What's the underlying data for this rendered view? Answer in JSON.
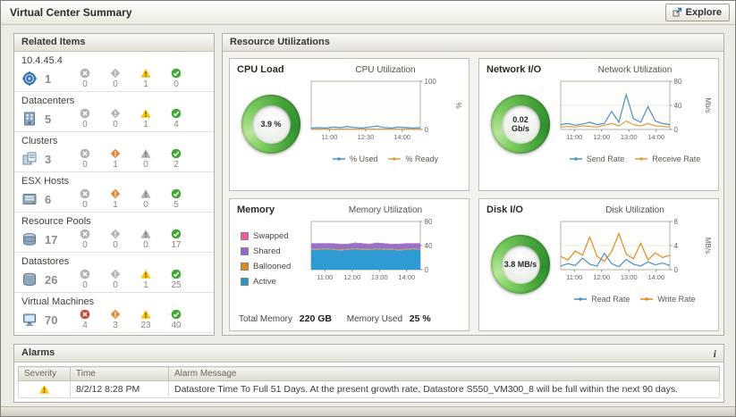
{
  "header": {
    "title": "Virtual Center Summary",
    "explore_label": "Explore"
  },
  "related_items": {
    "title": "Related Items",
    "status_colors": {
      "fatal": "#c64a3c",
      "critical": "#e2872f",
      "warning": "#f6c40e",
      "normal": "#44a636",
      "inactive": "#b3b2ae"
    },
    "items": [
      {
        "label": "10.4.45.4",
        "icon": "vcenter-icon",
        "count": "1",
        "statuses": [
          "0",
          "0",
          "1",
          "0"
        ]
      },
      {
        "label": "Datacenters",
        "icon": "datacenter-icon",
        "count": "5",
        "statuses": [
          "0",
          "0",
          "1",
          "4"
        ]
      },
      {
        "label": "Clusters",
        "icon": "cluster-icon",
        "count": "3",
        "statuses": [
          "0",
          "1",
          "0",
          "2"
        ]
      },
      {
        "label": "ESX Hosts",
        "icon": "esx-host-icon",
        "count": "6",
        "statuses": [
          "0",
          "1",
          "0",
          "5"
        ]
      },
      {
        "label": "Resource Pools",
        "icon": "resource-pool-icon",
        "count": "17",
        "statuses": [
          "0",
          "0",
          "0",
          "17"
        ]
      },
      {
        "label": "Datastores",
        "icon": "datastore-icon",
        "count": "26",
        "statuses": [
          "0",
          "0",
          "1",
          "25"
        ]
      },
      {
        "label": "Virtual Machines",
        "icon": "vm-icon",
        "count": "70",
        "statuses": [
          "4",
          "3",
          "23",
          "40"
        ]
      }
    ]
  },
  "resource_utilizations": {
    "title": "Resource Utilizations",
    "cpu": {
      "title": "CPU Load",
      "gauge_value": "3.9 %"
    },
    "network": {
      "title": "Network I/O",
      "gauge_value": "0.02 Gb/s"
    },
    "memory": {
      "title": "Memory",
      "total_memory_label": "Total Memory",
      "total_memory_value": "220 GB",
      "memory_used_label": "Memory Used",
      "memory_used_value": "25 %"
    },
    "disk": {
      "title": "Disk I/O",
      "gauge_value": "3.8 MB/s"
    }
  },
  "chart_data": [
    {
      "type": "line",
      "title": "CPU Utilization",
      "x_ticks": [
        "11:00",
        "12:30",
        "14:00"
      ],
      "y_ticks": [
        0,
        100
      ],
      "ylim": [
        0,
        100
      ],
      "ylabel": "%",
      "legend_position": "bottom",
      "grid": false,
      "series": [
        {
          "name": "% Used",
          "color": "#4a8fc7",
          "values": [
            3,
            4,
            3,
            5,
            4,
            6,
            4,
            3,
            5,
            7,
            4,
            3,
            5,
            4,
            3,
            4
          ]
        },
        {
          "name": "% Ready",
          "color": "#e09a3e",
          "values": [
            1,
            1,
            1,
            1,
            1,
            1,
            1,
            1,
            1,
            1,
            1,
            1,
            1,
            1,
            1,
            1
          ]
        }
      ]
    },
    {
      "type": "line",
      "title": "Network Utilization",
      "x_ticks": [
        "11:00",
        "12:00",
        "13:00",
        "14:00"
      ],
      "y_ticks": [
        0,
        40,
        80
      ],
      "ylim": [
        0,
        80
      ],
      "ylabel": "Mb/s",
      "legend_position": "bottom",
      "grid": false,
      "series": [
        {
          "name": "Send Rate",
          "color": "#4a8fc7",
          "values": [
            8,
            10,
            7,
            9,
            12,
            8,
            10,
            30,
            12,
            58,
            18,
            12,
            38,
            14,
            10,
            8
          ]
        },
        {
          "name": "Receive Rate",
          "color": "#e09a3e",
          "values": [
            4,
            5,
            4,
            6,
            5,
            4,
            7,
            10,
            6,
            14,
            8,
            6,
            10,
            6,
            5,
            4
          ]
        }
      ]
    },
    {
      "type": "area-stacked",
      "title": "Memory Utilization",
      "x_ticks": [
        "11:00",
        "12:00",
        "13:00",
        "14:00"
      ],
      "y_ticks": [
        0,
        40,
        80
      ],
      "ylim": [
        0,
        80
      ],
      "ylabel": "",
      "legend_position": "left",
      "grid": false,
      "series": [
        {
          "name": "Active",
          "color": "#2596d1",
          "values": [
            33,
            33,
            34,
            33,
            32,
            33,
            34,
            33,
            33,
            34,
            33,
            33,
            32,
            33,
            34,
            33
          ]
        },
        {
          "name": "Ballooned",
          "color": "#e08a1e",
          "values": [
            1.5,
            1.5,
            1.5,
            1.5,
            1.5,
            1.5,
            1.5,
            1.5,
            1.5,
            1.5,
            1.5,
            1.5,
            1.5,
            1.5,
            1.5,
            1.5
          ]
        },
        {
          "name": "Shared",
          "color": "#8d6cc9",
          "values": [
            9,
            9,
            8,
            9,
            9,
            8,
            9,
            9,
            8,
            9,
            9,
            8,
            9,
            9,
            8,
            9
          ]
        },
        {
          "name": "Swapped",
          "color": "#ef5ba1",
          "values": [
            0.5,
            0.5,
            0.5,
            0.5,
            0.5,
            0.5,
            0.5,
            0.5,
            0.5,
            0.5,
            0.5,
            0.5,
            0.5,
            0.5,
            0.5,
            0.5
          ]
        }
      ]
    },
    {
      "type": "line",
      "title": "Disk Utilization",
      "x_ticks": [
        "11:00",
        "12:00",
        "13:00",
        "14:00"
      ],
      "y_ticks": [
        0,
        4,
        8
      ],
      "ylim": [
        0,
        8
      ],
      "ylabel": "MB/s",
      "legend_position": "bottom",
      "grid": false,
      "series": [
        {
          "name": "Read Rate",
          "color": "#4a8fc7",
          "values": [
            0.6,
            1,
            0.7,
            1.9,
            0.9,
            0.6,
            2.7,
            1,
            0.5,
            1.7,
            0.9,
            0.6,
            1.3,
            0.8,
            1.1,
            0.7
          ]
        },
        {
          "name": "Write Rate",
          "color": "#e08a1e",
          "values": [
            2.2,
            1.6,
            3.1,
            2.4,
            5.4,
            2.2,
            1.4,
            3,
            6,
            2.6,
            1.8,
            4.4,
            1.6,
            2.8,
            2,
            2.4
          ]
        }
      ]
    }
  ],
  "alarms": {
    "title": "Alarms",
    "info_icon": "i",
    "columns": [
      "Severity",
      "Time",
      "Alarm Message"
    ],
    "rows": [
      {
        "severity": "warning",
        "time": "8/2/12 8:28 PM",
        "message": "Datastore Time To Full 51 Days. At the present growth rate, Datastore S550_VM300_8 will be full within the next 90 days."
      }
    ]
  }
}
